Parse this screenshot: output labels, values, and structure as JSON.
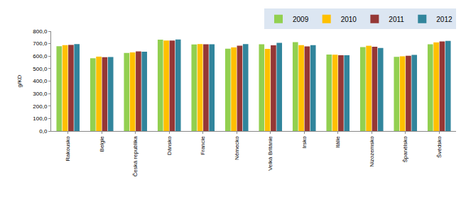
{
  "chart_data": {
    "type": "bar",
    "y_label": "g/KD",
    "categories": [
      "Rakousko",
      "Belgie",
      "Česká republika",
      "Dánsko",
      "Francie",
      "Německo",
      "Velká Británie",
      "Irsko",
      "Itálie",
      "Nizozemsko",
      "Španělsko",
      "Švédsko"
    ],
    "series": [
      {
        "name": "2009",
        "color": "#92D050",
        "values": [
          680,
          583,
          625,
          732,
          693,
          660,
          695,
          712,
          613,
          672,
          595,
          695
        ]
      },
      {
        "name": "2010",
        "color": "#FFC000",
        "values": [
          688,
          596,
          630,
          725,
          697,
          670,
          658,
          688,
          612,
          683,
          598,
          710
        ]
      },
      {
        "name": "2011",
        "color": "#953735",
        "values": [
          690,
          592,
          638,
          725,
          695,
          683,
          687,
          678,
          607,
          675,
          603,
          718
        ]
      },
      {
        "name": "2012",
        "color": "#31859C",
        "values": [
          697,
          593,
          635,
          733,
          695,
          697,
          707,
          688,
          607,
          665,
          610,
          722
        ]
      }
    ],
    "ylim": [
      0,
      800
    ],
    "yticks": [
      {
        "value": 0,
        "label": "0,0"
      },
      {
        "value": 100,
        "label": "100,0"
      },
      {
        "value": 200,
        "label": "200,0"
      },
      {
        "value": 300,
        "label": "300,0"
      },
      {
        "value": 400,
        "label": "400,0"
      },
      {
        "value": 500,
        "label": "500,0"
      },
      {
        "value": 600,
        "label": "600,0"
      },
      {
        "value": 700,
        "label": "700,0"
      },
      {
        "value": 800,
        "label": "800,0"
      }
    ],
    "grid": false,
    "legend": "upper right"
  }
}
